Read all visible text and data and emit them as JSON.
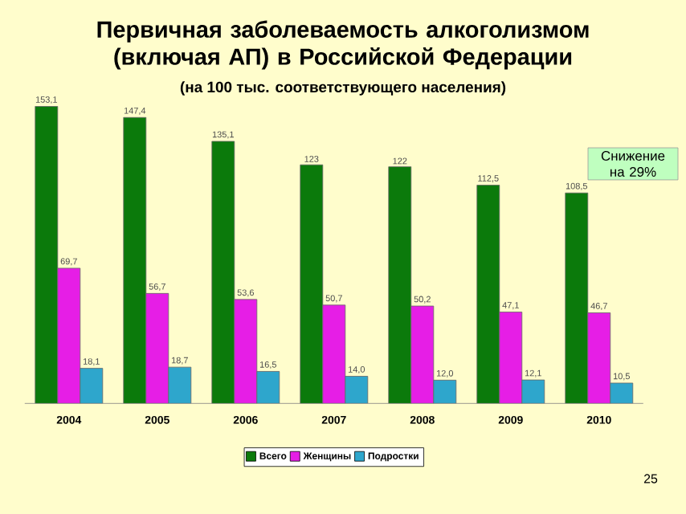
{
  "chart_data": {
    "type": "bar",
    "title": "Первичная заболеваемость алкоголизмом (включая АП) в Российской Федерации",
    "subtitle": "(на 100 тыс. соответствующего населения)",
    "categories": [
      "2004",
      "2005",
      "2006",
      "2007",
      "2008",
      "2009",
      "2010"
    ],
    "series": [
      {
        "name": "Всего",
        "color": "#0b7a0b",
        "values": [
          153.1,
          147.4,
          135.1,
          123,
          122,
          112.5,
          108.5
        ],
        "value_labels": [
          "153,1",
          "147,4",
          "135,1",
          "123",
          "122",
          "112,5",
          "108,5"
        ]
      },
      {
        "name": "Женщины",
        "color": "#e61ee6",
        "values": [
          69.7,
          56.7,
          53.6,
          50.7,
          50.2,
          47.1,
          46.7
        ],
        "value_labels": [
          "69,7",
          "56,7",
          "53,6",
          "50,7",
          "50,2",
          "47,1",
          "46,7"
        ]
      },
      {
        "name": "Подростки",
        "color": "#2ea6cc",
        "values": [
          18.1,
          18.7,
          16.5,
          14.0,
          12.0,
          12.1,
          10.5
        ],
        "value_labels": [
          "18,1",
          "18,7",
          "16,5",
          "14,0",
          "12,0",
          "12,1",
          "10,5"
        ]
      }
    ],
    "legend": "bottom",
    "annotations": [
      "Снижение на 29%",
      "25"
    ]
  }
}
